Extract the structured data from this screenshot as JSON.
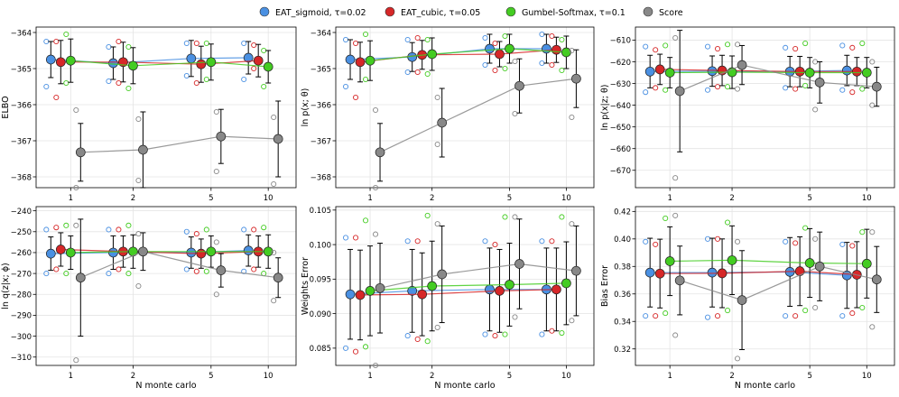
{
  "legend": [
    {
      "name": "EAT_sigmoid, τ=0.02",
      "color": "#4a90e2"
    },
    {
      "name": "EAT_cubic, τ=0.05",
      "color": "#d62728"
    },
    {
      "name": "Gumbel-Softmax, τ=0.1",
      "color": "#44cc22"
    },
    {
      "name": "Score",
      "color": "#888888"
    }
  ],
  "chart_data": [
    {
      "type": "line",
      "id": "elbo",
      "ylabel": "ELBO",
      "xlabel": "",
      "categories": [
        "1",
        "2",
        "5",
        "10"
      ],
      "ylim": [
        -368.3,
        -363.85
      ],
      "yticks": [
        -364,
        -365,
        -366,
        -367,
        -368
      ],
      "ytick_labels": [
        "−364",
        "−365",
        "−366",
        "−367",
        "−368"
      ],
      "series": [
        {
          "name": "EAT_sigmoid",
          "color": "#4a90e2",
          "mean": [
            -364.75,
            -364.85,
            -364.72,
            -364.7
          ],
          "err": [
            0.5,
            0.45,
            0.5,
            0.45
          ],
          "samples": [
            [
              -364.25,
              -365.5
            ],
            [
              -364.4,
              -365.35
            ],
            [
              -364.3,
              -365.2
            ],
            [
              -364.3,
              -365.3
            ]
          ]
        },
        {
          "name": "EAT_cubic",
          "color": "#d62728",
          "mean": [
            -364.82,
            -364.82,
            -364.88,
            -364.78
          ],
          "err": [
            0.6,
            0.55,
            0.5,
            0.45
          ],
          "samples": [
            [
              -364.25,
              -365.8
            ],
            [
              -364.25,
              -365.4
            ],
            [
              -364.3,
              -365.4
            ],
            [
              -364.35,
              -365.0
            ]
          ]
        },
        {
          "name": "Gumbel-Softmax",
          "color": "#44cc22",
          "mean": [
            -364.78,
            -364.92,
            -364.82,
            -364.95
          ],
          "err": [
            0.6,
            0.5,
            0.5,
            0.45
          ],
          "samples": [
            [
              -364.05,
              -365.4
            ],
            [
              -364.4,
              -365.55
            ],
            [
              -364.3,
              -365.3
            ],
            [
              -364.5,
              -365.5
            ]
          ]
        },
        {
          "name": "Score",
          "color": "#888888",
          "mean": [
            -367.32,
            -367.25,
            -366.88,
            -366.95
          ],
          "err": [
            0.8,
            1.05,
            0.75,
            1.05
          ],
          "samples": [
            [
              -366.15,
              -368.3
            ],
            [
              -366.4,
              -368.1
            ],
            [
              -366.2,
              -367.85
            ],
            [
              -366.35,
              -368.2
            ]
          ]
        }
      ]
    },
    {
      "type": "line",
      "id": "lnpx",
      "ylabel": "ln p(x; θ)",
      "xlabel": "",
      "categories": [
        "1",
        "2",
        "5",
        "10"
      ],
      "ylim": [
        -368.3,
        -363.85
      ],
      "yticks": [
        -364,
        -365,
        -366,
        -367,
        -368
      ],
      "ytick_labels": [
        "−364",
        "−365",
        "−366",
        "−367",
        "−368"
      ],
      "series": [
        {
          "name": "EAT_sigmoid",
          "color": "#4a90e2",
          "mean": [
            -364.75,
            -364.68,
            -364.45,
            -364.45
          ],
          "err": [
            0.55,
            0.4,
            0.4,
            0.4
          ],
          "samples": [
            [
              -364.2,
              -365.5
            ],
            [
              -364.2,
              -365.1
            ],
            [
              -364.15,
              -364.9
            ],
            [
              -364.05,
              -364.85
            ]
          ]
        },
        {
          "name": "EAT_cubic",
          "color": "#d62728",
          "mean": [
            -364.82,
            -364.62,
            -364.6,
            -364.48
          ],
          "err": [
            0.55,
            0.4,
            0.35,
            0.35
          ],
          "samples": [
            [
              -364.3,
              -365.8
            ],
            [
              -364.15,
              -365.1
            ],
            [
              -364.3,
              -365.05
            ],
            [
              -364.1,
              -364.9
            ]
          ]
        },
        {
          "name": "Gumbel-Softmax",
          "color": "#44cc22",
          "mean": [
            -364.78,
            -364.6,
            -364.45,
            -364.55
          ],
          "err": [
            0.55,
            0.45,
            0.4,
            0.45
          ],
          "samples": [
            [
              -364.05,
              -365.3
            ],
            [
              -364.2,
              -365.15
            ],
            [
              -364.1,
              -365.0
            ],
            [
              -364.2,
              -365.05
            ]
          ]
        },
        {
          "name": "Score",
          "color": "#888888",
          "mean": [
            -367.32,
            -366.5,
            -365.48,
            -365.28
          ],
          "err": [
            0.8,
            0.95,
            0.75,
            0.8
          ],
          "samples": [
            [
              -366.15,
              -368.3
            ],
            [
              -365.8,
              -367.1
            ],
            [
              -364.8,
              -366.25
            ],
            [
              -364.5,
              -366.35
            ]
          ]
        }
      ]
    },
    {
      "type": "line",
      "id": "lnpxz",
      "ylabel": "ln p(x|z; θ)",
      "xlabel": "",
      "categories": [
        "1",
        "2",
        "5",
        "10"
      ],
      "ylim": [
        -678,
        -604
      ],
      "yticks": [
        -610,
        -620,
        -630,
        -640,
        -650,
        -660,
        -670
      ],
      "ytick_labels": [
        "−610",
        "−620",
        "−630",
        "−640",
        "−650",
        "−660",
        "−670"
      ],
      "series": [
        {
          "name": "EAT_sigmoid",
          "color": "#4a90e2",
          "mean": [
            -624.5,
            -624.3,
            -624.5,
            -624.0
          ],
          "err": [
            7.5,
            7.0,
            7.0,
            7.0
          ],
          "samples": [
            [
              -613.0,
              -634.0
            ],
            [
              -613.0,
              -633.0
            ],
            [
              -613.5,
              -632.0
            ],
            [
              -612.5,
              -633.0
            ]
          ]
        },
        {
          "name": "EAT_cubic",
          "color": "#d62728",
          "mean": [
            -623.5,
            -624.0,
            -624.5,
            -624.5
          ],
          "err": [
            7.0,
            7.0,
            7.0,
            6.5
          ],
          "samples": [
            [
              -614.5,
              -632.0
            ],
            [
              -614.0,
              -631.5
            ],
            [
              -614.0,
              -632.5
            ],
            [
              -613.5,
              -634.0
            ]
          ]
        },
        {
          "name": "Gumbel-Softmax",
          "color": "#44cc22",
          "mean": [
            -625.0,
            -624.8,
            -625.0,
            -625.0
          ],
          "err": [
            7.0,
            7.5,
            7.0,
            7.0
          ],
          "samples": [
            [
              -612.5,
              -633.0
            ],
            [
              -612.0,
              -631.5
            ],
            [
              -611.5,
              -631.0
            ],
            [
              -611.5,
              -632.5
            ]
          ]
        },
        {
          "name": "Score",
          "color": "#888888",
          "mean": [
            -633.5,
            -621.5,
            -629.5,
            -631.5
          ],
          "err": [
            28.0,
            9.0,
            9.5,
            9.0
          ],
          "samples": [
            [
              -609.0,
              -673.5
            ],
            [
              -612.0,
              -632.5
            ],
            [
              -620.0,
              -642.0
            ],
            [
              -620.0,
              -640.0
            ]
          ]
        }
      ]
    },
    {
      "type": "line",
      "id": "lnqzx",
      "ylabel": "ln q(z|x; ϕ)",
      "xlabel": "N monte carlo",
      "categories": [
        "1",
        "2",
        "5",
        "10"
      ],
      "ylim": [
        -314,
        -238
      ],
      "yticks": [
        -240,
        -250,
        -260,
        -270,
        -280,
        -290,
        -300,
        -310
      ],
      "ytick_labels": [
        "−240",
        "−250",
        "−260",
        "−270",
        "−280",
        "−290",
        "−300",
        "−310"
      ],
      "series": [
        {
          "name": "EAT_sigmoid",
          "color": "#4a90e2",
          "mean": [
            -260.5,
            -260.0,
            -260.0,
            -259.0
          ],
          "err": [
            8.0,
            8.0,
            7.5,
            7.5
          ],
          "samples": [
            [
              -249.0,
              -270.0
            ],
            [
              -249.0,
              -270.0
            ],
            [
              -250.0,
              -268.0
            ],
            [
              -249.0,
              -269.0
            ]
          ]
        },
        {
          "name": "EAT_cubic",
          "color": "#d62728",
          "mean": [
            -258.5,
            -259.5,
            -260.5,
            -259.5
          ],
          "err": [
            8.0,
            7.5,
            7.0,
            7.5
          ],
          "samples": [
            [
              -248.0,
              -268.0
            ],
            [
              -249.0,
              -268.0
            ],
            [
              -251.0,
              -269.0
            ],
            [
              -249.0,
              -268.0
            ]
          ]
        },
        {
          "name": "Gumbel-Softmax",
          "color": "#44cc22",
          "mean": [
            -260.0,
            -259.5,
            -259.5,
            -259.5
          ],
          "err": [
            8.0,
            8.0,
            7.5,
            8.0
          ],
          "samples": [
            [
              -247.0,
              -270.0
            ],
            [
              -247.0,
              -270.0
            ],
            [
              -249.0,
              -269.0
            ],
            [
              -248.0,
              -270.0
            ]
          ]
        },
        {
          "name": "Score",
          "color": "#888888",
          "mean": [
            -272.0,
            -259.5,
            -268.5,
            -272.0
          ],
          "err": [
            28.0,
            9.0,
            8.0,
            9.5
          ],
          "samples": [
            [
              -247.0,
              -311.5
            ],
            [
              -251.0,
              -276.0
            ],
            [
              -255.0,
              -280.0
            ],
            [
              -260.0,
              -283.0
            ]
          ]
        }
      ]
    },
    {
      "type": "line",
      "id": "weights",
      "ylabel": "Weights Error",
      "xlabel": "N monte carlo",
      "categories": [
        "1",
        "2",
        "5",
        "10"
      ],
      "ylim": [
        0.0825,
        0.1055
      ],
      "yticks": [
        0.085,
        0.09,
        0.095,
        0.1,
        0.105
      ],
      "ytick_labels": [
        "0.085",
        "0.090",
        "0.095",
        "0.100",
        "0.105"
      ],
      "series": [
        {
          "name": "EAT_sigmoid",
          "color": "#4a90e2",
          "mean": [
            0.0928,
            0.0933,
            0.0935,
            0.0935
          ],
          "err": [
            0.0065,
            0.006,
            0.006,
            0.006
          ],
          "samples": [
            [
              0.101,
              0.085
            ],
            [
              0.1005,
              0.0868
            ],
            [
              0.1005,
              0.087
            ],
            [
              0.1005,
              0.087
            ]
          ]
        },
        {
          "name": "EAT_cubic",
          "color": "#d62728",
          "mean": [
            0.0927,
            0.0928,
            0.0933,
            0.0935
          ],
          "err": [
            0.0065,
            0.006,
            0.006,
            0.006
          ],
          "samples": [
            [
              0.101,
              0.0845
            ],
            [
              0.1005,
              0.0863
            ],
            [
              0.1,
              0.0868
            ],
            [
              0.1005,
              0.0875
            ]
          ]
        },
        {
          "name": "Gumbel-Softmax",
          "color": "#44cc22",
          "mean": [
            0.0933,
            0.094,
            0.0942,
            0.0944
          ],
          "err": [
            0.0065,
            0.0065,
            0.006,
            0.006
          ],
          "samples": [
            [
              0.1035,
              0.0852
            ],
            [
              0.1042,
              0.086
            ],
            [
              0.104,
              0.087
            ],
            [
              0.104,
              0.0872
            ]
          ]
        },
        {
          "name": "Score",
          "color": "#888888",
          "mean": [
            0.0937,
            0.0957,
            0.0972,
            0.0962
          ],
          "err": [
            0.0065,
            0.007,
            0.0065,
            0.0065
          ],
          "samples": [
            [
              0.1015,
              0.0825
            ],
            [
              0.103,
              0.088
            ],
            [
              0.104,
              0.0895
            ],
            [
              0.103,
              0.089
            ]
          ]
        }
      ]
    },
    {
      "type": "line",
      "id": "bias",
      "ylabel": "Bias Error",
      "xlabel": "N monte carlo",
      "categories": [
        "1",
        "2",
        "5",
        "10"
      ],
      "ylim": [
        0.308,
        0.4235
      ],
      "yticks": [
        0.32,
        0.34,
        0.36,
        0.38,
        0.4,
        0.42
      ],
      "ytick_labels": [
        "0.32",
        "0.34",
        "0.36",
        "0.38",
        "0.40",
        "0.42"
      ],
      "series": [
        {
          "name": "EAT_sigmoid",
          "color": "#4a90e2",
          "mean": [
            0.3755,
            0.3755,
            0.376,
            0.3735
          ],
          "err": [
            0.025,
            0.025,
            0.025,
            0.024
          ],
          "samples": [
            [
              0.398,
              0.344
            ],
            [
              0.4,
              0.343
            ],
            [
              0.398,
              0.344
            ],
            [
              0.396,
              0.344
            ]
          ]
        },
        {
          "name": "EAT_cubic",
          "color": "#d62728",
          "mean": [
            0.3748,
            0.375,
            0.3765,
            0.374
          ],
          "err": [
            0.025,
            0.025,
            0.025,
            0.024
          ],
          "samples": [
            [
              0.396,
              0.344
            ],
            [
              0.4,
              0.344
            ],
            [
              0.397,
              0.344
            ],
            [
              0.395,
              0.346
            ]
          ]
        },
        {
          "name": "Gumbel-Softmax",
          "color": "#44cc22",
          "mean": [
            0.3838,
            0.3845,
            0.3825,
            0.382
          ],
          "err": [
            0.025,
            0.025,
            0.025,
            0.025
          ],
          "samples": [
            [
              0.415,
              0.346
            ],
            [
              0.412,
              0.348
            ],
            [
              0.408,
              0.348
            ],
            [
              0.405,
              0.35
            ]
          ]
        },
        {
          "name": "Score",
          "color": "#888888",
          "mean": [
            0.3698,
            0.3555,
            0.38,
            0.3705
          ],
          "err": [
            0.025,
            0.036,
            0.025,
            0.024
          ],
          "samples": [
            [
              0.417,
              0.33
            ],
            [
              0.398,
              0.313
            ],
            [
              0.4,
              0.35
            ],
            [
              0.405,
              0.336
            ]
          ]
        }
      ]
    }
  ]
}
